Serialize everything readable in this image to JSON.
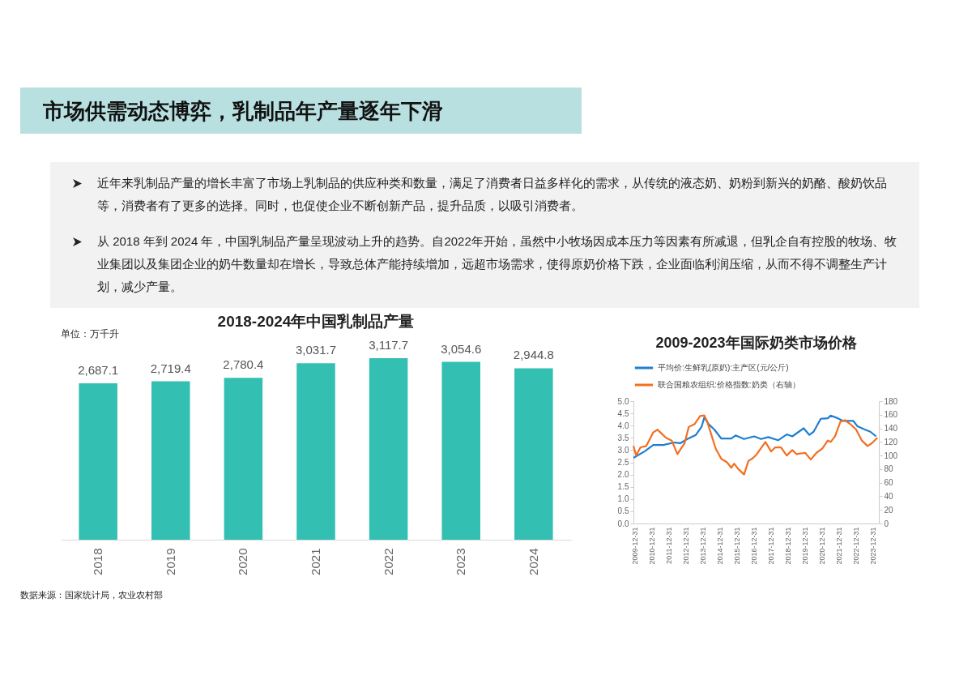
{
  "chart_data": [
    {
      "type": "other",
      "title": "市场供需动态博弈，乳制品年产量逐年下滑",
      "annotations": [
        "近年来乳制品产量的增长丰富了市场上乳制品的供应种类和数量，满足了消费者日益多样化的需求，从传统的液态奶、奶粉到新兴的奶酪、酸奶饮品等，消费者有了更多的选择。同时，也促使企业不断创新产品，提升品质，以吸引消费者。",
        "从 2018 年到 2024 年，中国乳制品产量呈现波动上升的趋势。自2022年开始，虽然中小牧场因成本压力等因素有所减退，但乳企自有控股的牧场、牧业集团以及集团企业的奶牛数量却在增长，导致总体产能持续增加，远超市场需求，使得原奶价格下跌，企业面临利润压缩，从而不得不调整生产计划，减少产量。"
      ]
    },
    {
      "type": "bar",
      "title": "2018-2024年中国乳制品产量",
      "categories": [
        "2018",
        "2019",
        "2020",
        "2021",
        "2022",
        "2023",
        "2024"
      ],
      "values": [
        2687.1,
        2719.4,
        2780.4,
        3031.7,
        3117.7,
        3054.6,
        2944.8
      ],
      "color": "#33bfb1",
      "value_labels": [
        "2,687.1",
        "2,719.4",
        "2,780.4",
        "3,031.7",
        "3,117.7",
        "3,054.6",
        "2,944.8"
      ],
      "annotations": [
        "单位：万千升",
        "数据来源：国家统计局，农业农村部"
      ]
    },
    {
      "type": "line",
      "title": "2009-2023年国际奶类市场价格",
      "legend": "top",
      "xlim": [
        "2009-12-31",
        "2024-05-31"
      ],
      "xticks": [
        "2009-12-31",
        "2010-12-31",
        "2011-12-31",
        "2012-12-31",
        "2013-12-31",
        "2014-12-31",
        "2015-12-31",
        "2016-12-31",
        "2017-12-31",
        "2018-12-31",
        "2019-12-31",
        "2020-12-31",
        "2021-12-31",
        "2022-12-31",
        "2023-12-31"
      ],
      "ylim": [
        0,
        5
      ],
      "yticks": [
        {
          "value": 0,
          "label": "0.0"
        },
        0.5,
        {
          "value": 1,
          "label": "1.0"
        },
        1.5,
        {
          "value": 2,
          "label": "2.0"
        },
        2.5,
        {
          "value": 3,
          "label": "3.0"
        },
        3.5,
        {
          "value": 4,
          "label": "4.0"
        },
        4.5,
        {
          "value": 5,
          "label": "5.0"
        }
      ],
      "y2lim": [
        0,
        180
      ],
      "y2ticks": [
        0,
        20,
        40,
        60,
        80,
        100,
        120,
        140,
        160,
        180
      ],
      "series": [
        {
          "name": "平均价:生鲜乳(原奶):主产区(元/公斤)",
          "color": "#1f7fd0",
          "x": [
            "2010-01",
            "2010-09",
            "2011-03",
            "2011-10",
            "2012-06",
            "2012-10",
            "2013-03",
            "2013-09",
            "2014-01",
            "2014-03",
            "2014-06",
            "2014-10",
            "2015-03",
            "2015-10",
            "2016-01",
            "2016-07",
            "2017-02",
            "2017-07",
            "2017-12",
            "2018-07",
            "2019-01",
            "2019-05",
            "2020-01",
            "2020-05",
            "2020-08",
            "2021-01",
            "2021-06",
            "2021-08",
            "2022-01",
            "2022-05",
            "2022-12",
            "2023-03",
            "2023-08",
            "2023-12",
            "2024-04"
          ],
          "values": [
            2.68,
            2.95,
            3.21,
            3.21,
            3.31,
            3.28,
            3.45,
            3.62,
            3.95,
            4.34,
            4.06,
            3.84,
            3.47,
            3.47,
            3.6,
            3.45,
            3.56,
            3.45,
            3.53,
            3.4,
            3.64,
            3.56,
            3.89,
            3.62,
            3.75,
            4.28,
            4.3,
            4.41,
            4.3,
            4.19,
            4.19,
            3.97,
            3.84,
            3.75,
            3.56
          ]
        },
        {
          "name": "联合国粮农组织:价格指数:奶类（右轴）",
          "color": "#f26f21",
          "axis": "y2",
          "x": [
            "2010-01",
            "2010-03",
            "2010-06",
            "2010-10",
            "2010-12",
            "2011-03",
            "2011-06",
            "2011-08",
            "2011-12",
            "2012-04",
            "2012-08",
            "2012-11",
            "2013-01",
            "2013-04",
            "2013-08",
            "2013-12",
            "2014-03",
            "2014-05",
            "2014-08",
            "2014-11",
            "2015-03",
            "2015-07",
            "2015-10",
            "2015-12",
            "2016-03",
            "2016-07",
            "2016-10",
            "2017-01",
            "2017-04",
            "2017-10",
            "2018-02",
            "2018-05",
            "2018-09",
            "2019-01",
            "2019-05",
            "2019-08",
            "2020-02",
            "2020-06",
            "2020-10",
            "2021-02",
            "2021-06",
            "2021-08",
            "2021-11",
            "2022-03",
            "2022-06",
            "2022-10",
            "2023-02",
            "2023-06",
            "2023-10",
            "2024-01",
            "2024-05"
          ],
          "values": [
            114,
            100,
            112,
            114,
            122,
            134,
            138,
            134,
            126,
            122,
            102,
            112,
            118,
            142,
            146,
            158,
            159,
            150,
            130,
            110,
            95,
            90,
            82,
            88,
            80,
            72,
            92,
            96,
            102,
            120,
            106,
            112,
            112,
            100,
            108,
            102,
            104,
            94,
            104,
            110,
            122,
            120,
            128,
            150,
            152,
            146,
            138,
            122,
            114,
            118,
            126
          ]
        }
      ]
    }
  ]
}
